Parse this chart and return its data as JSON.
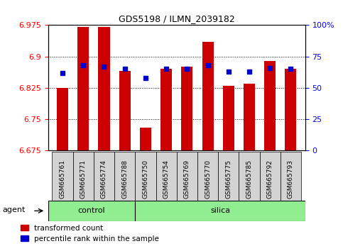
{
  "title": "GDS5198 / ILMN_2039182",
  "samples": [
    "GSM665761",
    "GSM665771",
    "GSM665774",
    "GSM665788",
    "GSM665750",
    "GSM665754",
    "GSM665769",
    "GSM665770",
    "GSM665775",
    "GSM665785",
    "GSM665792",
    "GSM665793"
  ],
  "groups": [
    "control",
    "control",
    "control",
    "control",
    "silica",
    "silica",
    "silica",
    "silica",
    "silica",
    "silica",
    "silica",
    "silica"
  ],
  "bar_values": [
    6.825,
    6.97,
    6.97,
    6.865,
    6.73,
    6.87,
    6.875,
    6.935,
    6.83,
    6.835,
    6.89,
    6.87
  ],
  "percentile_values": [
    62,
    68,
    67,
    65,
    58,
    65,
    65,
    68,
    63,
    63,
    66,
    65
  ],
  "ylim_left": [
    6.675,
    6.975
  ],
  "ylim_right": [
    0,
    100
  ],
  "yticks_left": [
    6.675,
    6.75,
    6.825,
    6.9,
    6.975
  ],
  "yticks_right": [
    0,
    25,
    50,
    75,
    100
  ],
  "bar_color": "#cc0000",
  "marker_color": "#0000cc",
  "bar_bottom": 6.675,
  "group_color": "#90ee90",
  "legend_items": [
    "transformed count",
    "percentile rank within the sample"
  ],
  "n_control": 4,
  "n_silica": 8
}
